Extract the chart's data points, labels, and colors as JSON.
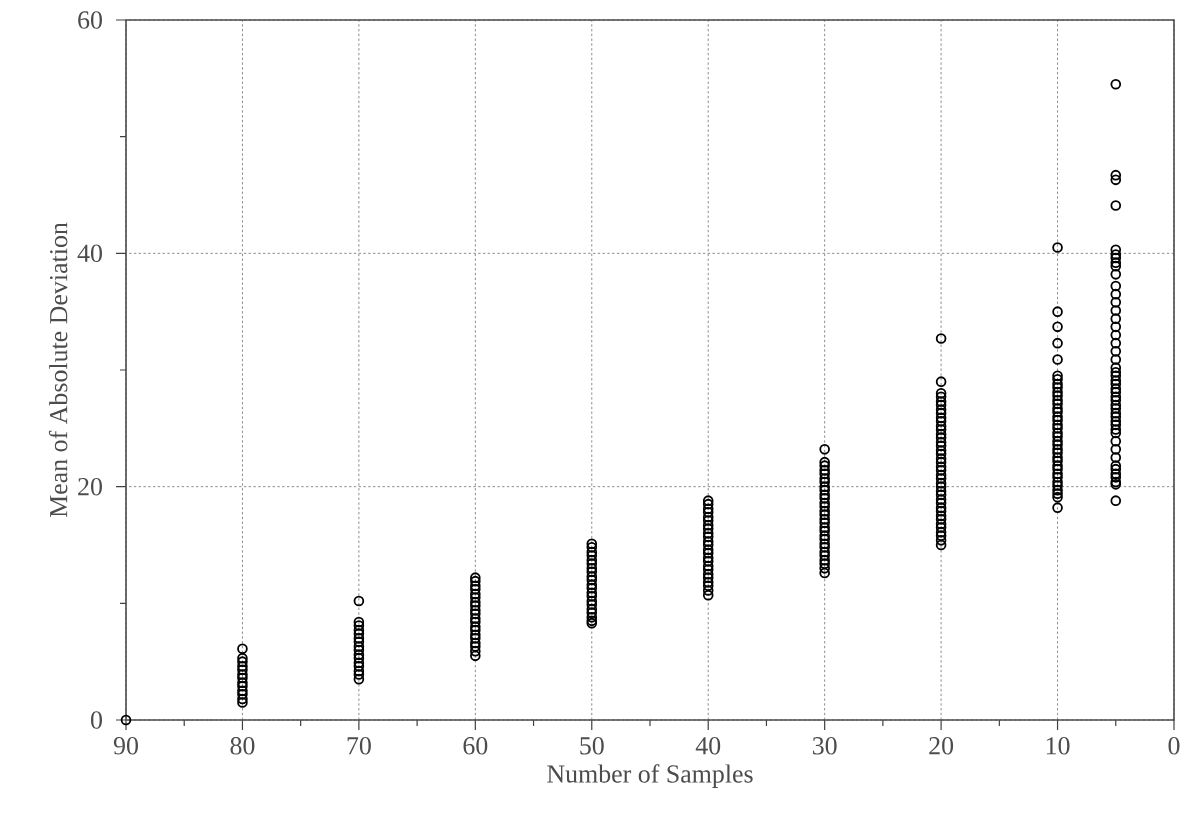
{
  "chart_data": {
    "type": "scatter",
    "xlabel": "Number of Samples",
    "ylabel": "Mean of Absolute Deviation",
    "xlim": [
      90,
      0
    ],
    "ylim": [
      0,
      60
    ],
    "xticks": [
      90,
      {
        "value": 85,
        "label": null
      },
      80,
      {
        "value": 75,
        "label": null
      },
      70,
      {
        "value": 65,
        "label": null
      },
      60,
      {
        "value": 55,
        "label": null
      },
      50,
      {
        "value": 45,
        "label": null
      },
      40,
      {
        "value": 35,
        "label": null
      },
      30,
      {
        "value": 25,
        "label": null
      },
      20,
      {
        "value": 15,
        "label": null
      },
      10,
      {
        "value": 5,
        "label": null
      },
      0
    ],
    "yticks": [
      0,
      {
        "value": 10,
        "label": null
      },
      20,
      {
        "value": 30,
        "label": null
      },
      40,
      {
        "value": 50,
        "label": null
      },
      60
    ],
    "grid": true,
    "marker": "circle",
    "color": "#000000",
    "x": [
      90,
      80,
      80,
      80,
      80,
      80,
      80,
      80,
      80,
      80,
      80,
      80,
      80,
      80,
      70,
      70,
      70,
      70,
      70,
      70,
      70,
      70,
      70,
      70,
      70,
      70,
      70,
      70,
      70,
      70,
      60,
      60,
      60,
      60,
      60,
      60,
      60,
      60,
      60,
      60,
      60,
      60,
      60,
      60,
      60,
      60,
      60,
      60,
      60,
      60,
      50,
      50,
      50,
      50,
      50,
      50,
      50,
      50,
      50,
      50,
      50,
      50,
      50,
      50,
      50,
      50,
      50,
      50,
      50,
      50,
      50,
      40,
      40,
      40,
      40,
      40,
      40,
      40,
      40,
      40,
      40,
      40,
      40,
      40,
      40,
      40,
      40,
      40,
      40,
      40,
      40,
      40,
      40,
      40,
      40,
      30,
      30,
      30,
      30,
      30,
      30,
      30,
      30,
      30,
      30,
      30,
      30,
      30,
      30,
      30,
      30,
      30,
      30,
      30,
      30,
      30,
      30,
      30,
      30,
      30,
      30,
      30,
      30,
      30,
      20,
      20,
      20,
      20,
      20,
      20,
      20,
      20,
      20,
      20,
      20,
      20,
      20,
      20,
      20,
      20,
      20,
      20,
      20,
      20,
      20,
      20,
      20,
      20,
      20,
      20,
      20,
      20,
      20,
      20,
      20,
      20,
      20,
      20,
      20,
      20,
      20,
      20,
      20,
      20,
      10,
      10,
      10,
      10,
      10,
      10,
      10,
      10,
      10,
      10,
      10,
      10,
      10,
      10,
      10,
      10,
      10,
      10,
      10,
      10,
      10,
      10,
      10,
      10,
      10,
      10,
      10,
      10,
      10,
      10,
      10,
      10,
      10,
      10,
      10,
      10,
      10,
      5,
      5,
      5,
      5,
      5,
      5,
      5,
      5,
      5,
      5,
      5,
      5,
      5,
      5,
      5,
      5,
      5,
      5,
      5,
      5,
      5,
      5,
      5,
      5,
      5,
      5,
      5,
      5,
      5,
      5,
      5,
      5,
      5,
      5,
      5,
      5,
      5,
      5,
      5,
      5,
      5,
      5,
      5,
      5,
      5,
      5,
      5
    ],
    "values": [
      0,
      6.1,
      5.3,
      5.0,
      4.6,
      4.3,
      3.9,
      3.6,
      3.2,
      2.9,
      2.5,
      2.2,
      1.8,
      1.5,
      10.2,
      8.4,
      8.1,
      7.7,
      7.4,
      7.0,
      6.7,
      6.3,
      6.0,
      5.6,
      5.3,
      4.9,
      4.6,
      4.2,
      3.9,
      3.5,
      12.2,
      11.9,
      11.5,
      11.2,
      10.8,
      10.5,
      10.1,
      9.8,
      9.4,
      9.1,
      8.7,
      8.4,
      8.0,
      7.7,
      7.3,
      7.0,
      6.6,
      6.3,
      5.9,
      5.5,
      15.1,
      14.8,
      14.4,
      14.1,
      13.7,
      13.4,
      13.0,
      12.7,
      12.3,
      12.0,
      11.6,
      11.3,
      10.9,
      10.6,
      10.2,
      9.9,
      9.5,
      9.2,
      8.8,
      8.5,
      8.3,
      18.8,
      18.5,
      18.1,
      17.8,
      17.4,
      17.1,
      16.7,
      16.4,
      16.0,
      15.7,
      15.3,
      15.0,
      14.6,
      14.3,
      13.9,
      13.6,
      13.2,
      12.9,
      12.5,
      12.2,
      11.8,
      11.5,
      11.1,
      10.7,
      23.2,
      22.1,
      21.8,
      21.4,
      21.1,
      20.7,
      20.4,
      20.0,
      19.7,
      19.3,
      19.0,
      18.6,
      18.3,
      17.9,
      17.6,
      17.2,
      16.9,
      16.5,
      16.2,
      15.8,
      15.5,
      15.1,
      14.8,
      14.4,
      14.1,
      13.7,
      13.4,
      13.0,
      12.6,
      32.7,
      29.0,
      28.0,
      27.7,
      27.3,
      27.0,
      26.6,
      26.3,
      25.9,
      25.6,
      25.2,
      24.9,
      24.5,
      24.2,
      23.8,
      23.5,
      23.1,
      22.8,
      22.4,
      22.1,
      21.7,
      21.4,
      21.0,
      20.7,
      20.3,
      20.0,
      19.6,
      19.3,
      18.9,
      18.6,
      18.2,
      17.9,
      17.5,
      17.2,
      16.8,
      16.5,
      16.1,
      15.8,
      15.4,
      15.0,
      40.5,
      35.0,
      33.7,
      32.3,
      30.9,
      29.5,
      29.2,
      28.8,
      28.5,
      28.1,
      27.8,
      27.4,
      27.1,
      26.7,
      26.4,
      26.0,
      25.7,
      25.3,
      25.0,
      24.6,
      24.3,
      23.9,
      23.6,
      23.2,
      22.9,
      22.5,
      22.2,
      21.8,
      21.5,
      21.1,
      20.8,
      20.4,
      20.1,
      19.7,
      19.4,
      19.1,
      18.2,
      54.5,
      46.7,
      46.3,
      44.1,
      40.3,
      39.9,
      39.6,
      39.2,
      38.9,
      38.2,
      37.2,
      36.5,
      35.8,
      35.1,
      34.4,
      33.7,
      33.0,
      32.3,
      31.6,
      30.9,
      30.2,
      29.8,
      29.5,
      29.1,
      28.8,
      28.4,
      28.1,
      27.7,
      27.4,
      27.0,
      26.7,
      26.3,
      26.0,
      25.6,
      25.3,
      24.9,
      24.6,
      23.9,
      23.2,
      22.5,
      21.8,
      21.5,
      21.1,
      20.8,
      20.4,
      20.2,
      18.8
    ]
  }
}
